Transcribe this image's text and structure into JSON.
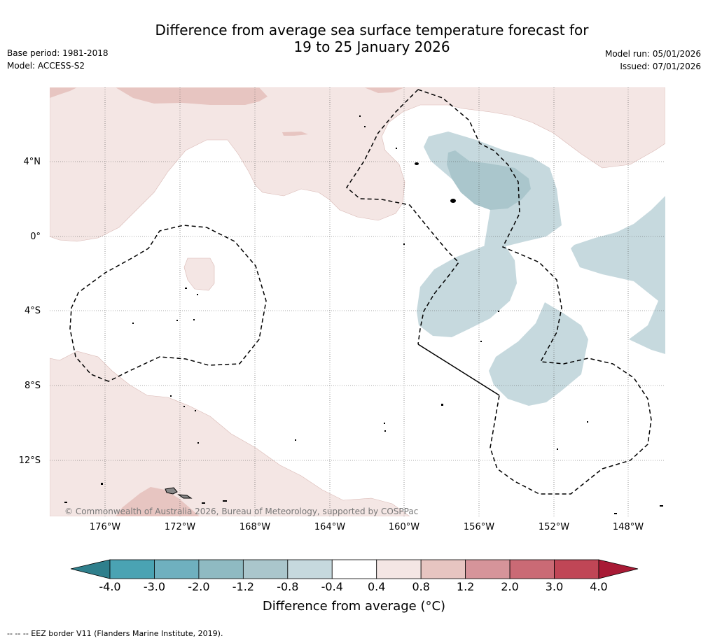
{
  "header": {
    "title_line1": "Difference from average sea surface temperature forecast for",
    "title_line2": "19 to 25 January 2026",
    "base_period": "Base period: 1981-2018",
    "model": "Model: ACCESS-S2",
    "model_run": "Model run: 05/01/2026",
    "issued": "Issued: 07/01/2026"
  },
  "map": {
    "lat_labels": [
      "4°N",
      "0°",
      "4°S",
      "8°S",
      "12°S"
    ],
    "lon_labels": [
      "176°W",
      "172°W",
      "168°W",
      "164°W",
      "160°W",
      "156°W",
      "152°W",
      "148°W"
    ],
    "copyright": "© Commonwealth of Australia 2026, Bureau of Meteorology, supported by COSPPac"
  },
  "colorbar": {
    "label": "Difference from average (°C)",
    "ticks": [
      "-4.0",
      "-3.0",
      "-2.0",
      "-1.2",
      "-0.8",
      "-0.4",
      "0.4",
      "0.8",
      "1.2",
      "2.0",
      "3.0",
      "4.0"
    ],
    "colors": [
      "#2f7f8c",
      "#4aa3b3",
      "#6fb0bf",
      "#8fbac2",
      "#aac6cc",
      "#c6d9de",
      "#ffffff",
      "#f4e6e4",
      "#e7c5c1",
      "#d6949a",
      "#ca6a75",
      "#c04656",
      "#a81a35"
    ]
  },
  "footer": {
    "eez_note": "-- -- -- EEZ border V11 (Flanders Marine Institute, 2019)."
  }
}
